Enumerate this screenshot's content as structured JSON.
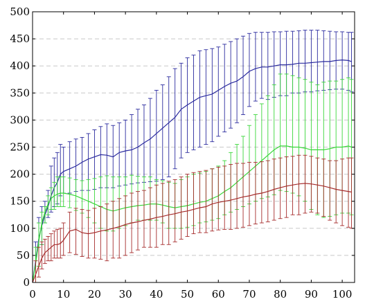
{
  "chart_data": {
    "type": "line",
    "title": "",
    "xlabel": "",
    "ylabel": "",
    "xlim": [
      0,
      104
    ],
    "ylim": [
      0,
      500
    ],
    "x_ticks": [
      0,
      10,
      20,
      30,
      40,
      50,
      60,
      70,
      80,
      90,
      100
    ],
    "y_ticks": [
      0,
      50,
      100,
      150,
      200,
      250,
      300,
      350,
      400,
      450,
      500
    ],
    "grid": "horizontal dashed",
    "legend": "none",
    "error_bars": true,
    "series": [
      {
        "color": "#2a2a9e",
        "points": [
          [
            0,
            0,
            0,
            0
          ],
          [
            1,
            40,
            0,
            75
          ],
          [
            2,
            80,
            30,
            120
          ],
          [
            3,
            105,
            70,
            140
          ],
          [
            4,
            125,
            110,
            150
          ],
          [
            5,
            140,
            120,
            170
          ],
          [
            6,
            160,
            130,
            215
          ],
          [
            7,
            175,
            140,
            230
          ],
          [
            8,
            185,
            145,
            240
          ],
          [
            9,
            200,
            160,
            255
          ],
          [
            10,
            205,
            165,
            250
          ],
          [
            12,
            210,
            165,
            260
          ],
          [
            14,
            215,
            168,
            265
          ],
          [
            16,
            222,
            170,
            268
          ],
          [
            18,
            228,
            170,
            275
          ],
          [
            20,
            232,
            172,
            282
          ],
          [
            22,
            236,
            175,
            288
          ],
          [
            24,
            235,
            175,
            293
          ],
          [
            26,
            232,
            175,
            290
          ],
          [
            28,
            240,
            178,
            295
          ],
          [
            30,
            243,
            180,
            300
          ],
          [
            32,
            245,
            182,
            310
          ],
          [
            34,
            250,
            184,
            320
          ],
          [
            36,
            258,
            185,
            328
          ],
          [
            38,
            265,
            186,
            340
          ],
          [
            40,
            275,
            187,
            355
          ],
          [
            42,
            285,
            190,
            365
          ],
          [
            44,
            295,
            195,
            380
          ],
          [
            46,
            305,
            210,
            395
          ],
          [
            48,
            320,
            230,
            405
          ],
          [
            50,
            328,
            240,
            415
          ],
          [
            52,
            335,
            245,
            420
          ],
          [
            54,
            342,
            250,
            428
          ],
          [
            56,
            345,
            255,
            430
          ],
          [
            58,
            348,
            260,
            432
          ],
          [
            60,
            355,
            270,
            435
          ],
          [
            62,
            362,
            278,
            440
          ],
          [
            64,
            368,
            285,
            445
          ],
          [
            66,
            372,
            295,
            450
          ],
          [
            68,
            380,
            310,
            455
          ],
          [
            70,
            390,
            325,
            460
          ],
          [
            72,
            395,
            335,
            462
          ],
          [
            74,
            398,
            340,
            462
          ],
          [
            76,
            398,
            338,
            462
          ],
          [
            78,
            400,
            342,
            463
          ],
          [
            80,
            402,
            345,
            463
          ],
          [
            82,
            402,
            345,
            464
          ],
          [
            84,
            403,
            350,
            464
          ],
          [
            86,
            405,
            350,
            465
          ],
          [
            88,
            405,
            352,
            466
          ],
          [
            90,
            406,
            352,
            466
          ],
          [
            92,
            407,
            354,
            466
          ],
          [
            94,
            408,
            355,
            465
          ],
          [
            96,
            408,
            356,
            464
          ],
          [
            98,
            410,
            357,
            463
          ],
          [
            100,
            411,
            357,
            463
          ],
          [
            102,
            410,
            355,
            462
          ],
          [
            103,
            408,
            352,
            462
          ]
        ]
      },
      {
        "color": "#39d639",
        "points": [
          [
            0,
            0,
            0,
            0
          ],
          [
            1,
            35,
            0,
            65
          ],
          [
            2,
            75,
            30,
            110
          ],
          [
            3,
            110,
            70,
            130
          ],
          [
            4,
            130,
            110,
            140
          ],
          [
            5,
            145,
            125,
            160
          ],
          [
            6,
            155,
            135,
            175
          ],
          [
            7,
            160,
            135,
            185
          ],
          [
            8,
            163,
            140,
            195
          ],
          [
            9,
            165,
            140,
            195
          ],
          [
            10,
            165,
            140,
            195
          ],
          [
            12,
            163,
            138,
            193
          ],
          [
            14,
            160,
            133,
            190
          ],
          [
            16,
            155,
            128,
            188
          ],
          [
            18,
            150,
            120,
            190
          ],
          [
            20,
            145,
            110,
            192
          ],
          [
            22,
            140,
            100,
            195
          ],
          [
            24,
            135,
            95,
            197
          ],
          [
            26,
            132,
            95,
            195
          ],
          [
            28,
            135,
            100,
            195
          ],
          [
            30,
            138,
            105,
            195
          ],
          [
            32,
            140,
            110,
            198
          ],
          [
            34,
            142,
            115,
            196
          ],
          [
            36,
            143,
            115,
            195
          ],
          [
            38,
            145,
            115,
            195
          ],
          [
            40,
            145,
            115,
            190
          ],
          [
            42,
            143,
            110,
            188
          ],
          [
            44,
            140,
            100,
            185
          ],
          [
            46,
            138,
            100,
            183
          ],
          [
            48,
            140,
            100,
            190
          ],
          [
            50,
            142,
            102,
            195
          ],
          [
            52,
            145,
            105,
            200
          ],
          [
            54,
            148,
            110,
            202
          ],
          [
            56,
            150,
            112,
            205
          ],
          [
            58,
            155,
            115,
            210
          ],
          [
            60,
            160,
            118,
            215
          ],
          [
            62,
            168,
            125,
            225
          ],
          [
            64,
            175,
            130,
            240
          ],
          [
            66,
            185,
            135,
            255
          ],
          [
            68,
            195,
            140,
            270
          ],
          [
            70,
            205,
            145,
            290
          ],
          [
            72,
            215,
            150,
            310
          ],
          [
            74,
            225,
            155,
            330
          ],
          [
            76,
            235,
            158,
            345
          ],
          [
            78,
            245,
            162,
            365
          ],
          [
            80,
            252,
            170,
            385
          ],
          [
            82,
            252,
            168,
            385
          ],
          [
            84,
            250,
            165,
            382
          ],
          [
            86,
            250,
            160,
            378
          ],
          [
            88,
            248,
            150,
            375
          ],
          [
            90,
            245,
            135,
            370
          ],
          [
            92,
            245,
            125,
            365
          ],
          [
            94,
            245,
            120,
            370
          ],
          [
            96,
            247,
            122,
            372
          ],
          [
            98,
            250,
            125,
            372
          ],
          [
            100,
            250,
            128,
            375
          ],
          [
            102,
            252,
            128,
            378
          ],
          [
            103,
            250,
            125,
            375
          ]
        ]
      },
      {
        "color": "#a52a2a",
        "points": [
          [
            0,
            0,
            0,
            0
          ],
          [
            1,
            15,
            0,
            40
          ],
          [
            2,
            30,
            10,
            65
          ],
          [
            3,
            45,
            25,
            75
          ],
          [
            4,
            55,
            35,
            80
          ],
          [
            5,
            60,
            40,
            85
          ],
          [
            6,
            65,
            40,
            90
          ],
          [
            7,
            70,
            45,
            95
          ],
          [
            8,
            70,
            45,
            98
          ],
          [
            9,
            72,
            45,
            100
          ],
          [
            10,
            78,
            50,
            110
          ],
          [
            12,
            95,
            55,
            130
          ],
          [
            14,
            98,
            52,
            137
          ],
          [
            16,
            92,
            48,
            135
          ],
          [
            18,
            90,
            45,
            133
          ],
          [
            20,
            92,
            45,
            137
          ],
          [
            22,
            95,
            43,
            140
          ],
          [
            24,
            97,
            40,
            145
          ],
          [
            26,
            100,
            45,
            150
          ],
          [
            28,
            103,
            45,
            155
          ],
          [
            30,
            107,
            50,
            160
          ],
          [
            32,
            110,
            55,
            165
          ],
          [
            34,
            112,
            60,
            168
          ],
          [
            36,
            115,
            65,
            170
          ],
          [
            38,
            117,
            65,
            175
          ],
          [
            40,
            120,
            65,
            180
          ],
          [
            42,
            122,
            70,
            183
          ],
          [
            44,
            125,
            70,
            187
          ],
          [
            46,
            127,
            75,
            190
          ],
          [
            48,
            130,
            80,
            195
          ],
          [
            50,
            132,
            85,
            200
          ],
          [
            52,
            135,
            90,
            203
          ],
          [
            54,
            138,
            92,
            205
          ],
          [
            56,
            140,
            92,
            207
          ],
          [
            58,
            145,
            95,
            210
          ],
          [
            60,
            148,
            97,
            213
          ],
          [
            62,
            150,
            98,
            215
          ],
          [
            64,
            152,
            98,
            218
          ],
          [
            66,
            155,
            100,
            220
          ],
          [
            68,
            158,
            102,
            220
          ],
          [
            70,
            160,
            105,
            222
          ],
          [
            72,
            163,
            108,
            222
          ],
          [
            74,
            165,
            110,
            223
          ],
          [
            76,
            168,
            112,
            225
          ],
          [
            78,
            172,
            115,
            228
          ],
          [
            80,
            175,
            118,
            230
          ],
          [
            82,
            178,
            120,
            232
          ],
          [
            84,
            180,
            125,
            233
          ],
          [
            86,
            182,
            125,
            235
          ],
          [
            88,
            183,
            128,
            235
          ],
          [
            90,
            182,
            130,
            233
          ],
          [
            92,
            180,
            128,
            230
          ],
          [
            94,
            178,
            122,
            228
          ],
          [
            96,
            175,
            115,
            225
          ],
          [
            98,
            172,
            110,
            225
          ],
          [
            100,
            170,
            105,
            228
          ],
          [
            102,
            168,
            102,
            230
          ],
          [
            103,
            167,
            100,
            230
          ]
        ]
      }
    ]
  }
}
